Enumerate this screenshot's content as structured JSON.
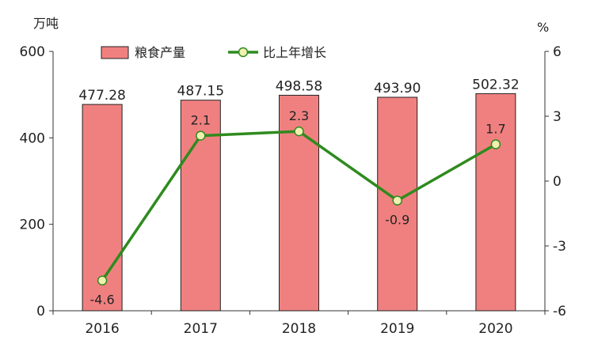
{
  "chart_data": {
    "type": "bar+line",
    "categories": [
      "2016",
      "2017",
      "2018",
      "2019",
      "2020"
    ],
    "series": [
      {
        "name": "粮食产量",
        "type": "bar",
        "axis": "left",
        "values": [
          477.28,
          487.15,
          498.58,
          493.9,
          502.32
        ],
        "labels": [
          "477.28",
          "487.15",
          "498.58",
          "493.90",
          "502.32"
        ],
        "color": "#f08080"
      },
      {
        "name": "比上年增长",
        "type": "line",
        "axis": "right",
        "values": [
          -4.6,
          2.1,
          2.3,
          -0.9,
          1.7
        ],
        "labels": [
          "-4.6",
          "2.1",
          "2.3",
          "-0.9",
          "1.7"
        ],
        "color": "#2e8b1e"
      }
    ],
    "left_axis": {
      "unit": "万吨",
      "ylim": [
        0,
        600
      ],
      "ticks": [
        "0",
        "200",
        "400",
        "600"
      ]
    },
    "right_axis": {
      "unit": "%",
      "ylim": [
        -6,
        6
      ],
      "ticks": [
        "-6",
        "-3",
        "0",
        "3",
        "6"
      ]
    },
    "legend_position": "top",
    "grid": false,
    "colors": {
      "bar_fill": "#f08080",
      "bar_stroke": "#222222",
      "line": "#2e8b1e",
      "marker_fill": "#f0f0b0"
    }
  }
}
